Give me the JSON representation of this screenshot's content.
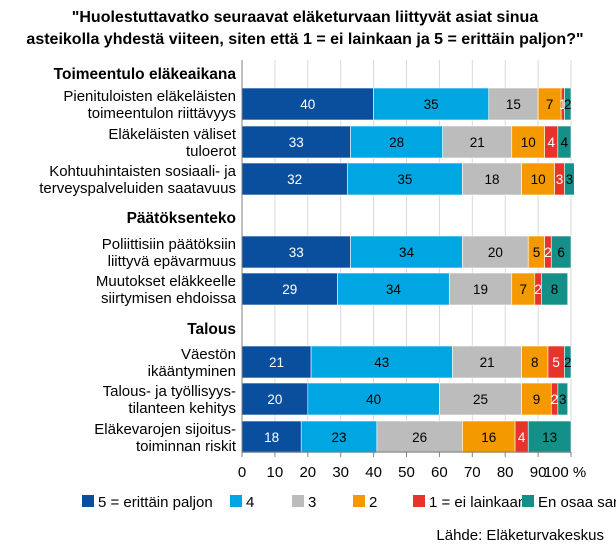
{
  "chart_data": {
    "type": "bar",
    "orientation": "horizontal",
    "stacked": true,
    "title_lines": [
      "\"Huolestuttavatko seuraavat eläketurvaan liittyvät asiat sinua",
      "asteikolla yhdestä viiteen, siten että 1 = ei lainkaan ja 5 = erittäin paljon?\""
    ],
    "series": [
      {
        "name": "5 = erittäin paljon",
        "color": "#0a4f9e",
        "label_color": "#ffffff"
      },
      {
        "name": "4",
        "color": "#00a6e2",
        "label_color": "#000000"
      },
      {
        "name": "3",
        "color": "#bcbcbc",
        "label_color": "#000000"
      },
      {
        "name": "2",
        "color": "#f49a00",
        "label_color": "#000000"
      },
      {
        "name": "1 = ei lainkaan",
        "color": "#e8332a",
        "label_color": "#ffffff"
      },
      {
        "name": "En osaa sanoa",
        "color": "#149088",
        "label_color": "#000000"
      }
    ],
    "groups": [
      {
        "name": "Toimeentulo eläkeaikana",
        "items": [
          {
            "label": [
              "Pienituloisten eläkeläisten",
              "toimeentulon riittävyys"
            ],
            "values": [
              40,
              35,
              15,
              7,
              1,
              2
            ]
          },
          {
            "label": [
              "Eläkeläisten väliset",
              "tuloerot"
            ],
            "values": [
              33,
              28,
              21,
              10,
              4,
              4
            ]
          },
          {
            "label": [
              "Kohtuuhintaisten sosiaali- ja",
              "terveyspalveluiden saatavuus"
            ],
            "values": [
              32,
              35,
              18,
              10,
              3,
              3
            ]
          }
        ]
      },
      {
        "name": "Päätöksenteko",
        "items": [
          {
            "label": [
              "Poliittisiin päätöksiin",
              "liittyvä epävarmuus"
            ],
            "values": [
              33,
              34,
              20,
              5,
              2,
              6
            ]
          },
          {
            "label": [
              "Muutokset eläkkeelle",
              "siirtymisen ehdoissa"
            ],
            "values": [
              29,
              34,
              19,
              7,
              2,
              8
            ]
          }
        ]
      },
      {
        "name": "Talous",
        "items": [
          {
            "label": [
              "Väestön",
              "ikääntyminen"
            ],
            "values": [
              21,
              43,
              21,
              8,
              5,
              2
            ]
          },
          {
            "label": [
              "Talous- ja työllisyys-",
              "tilanteen kehitys"
            ],
            "values": [
              20,
              40,
              25,
              9,
              2,
              3
            ]
          },
          {
            "label": [
              "Eläkevarojen sijoitus-",
              "toiminnan riskit"
            ],
            "values": [
              18,
              23,
              26,
              16,
              4,
              13
            ]
          }
        ]
      }
    ],
    "x_ticks": [
      "0",
      "10",
      "20",
      "30",
      "40",
      "50",
      "60",
      "70",
      "80",
      "90",
      "100 %"
    ],
    "xlim": [
      0,
      100
    ],
    "grid": true,
    "legend_position": "bottom",
    "source": "Lähde: Eläketurvakeskus"
  }
}
